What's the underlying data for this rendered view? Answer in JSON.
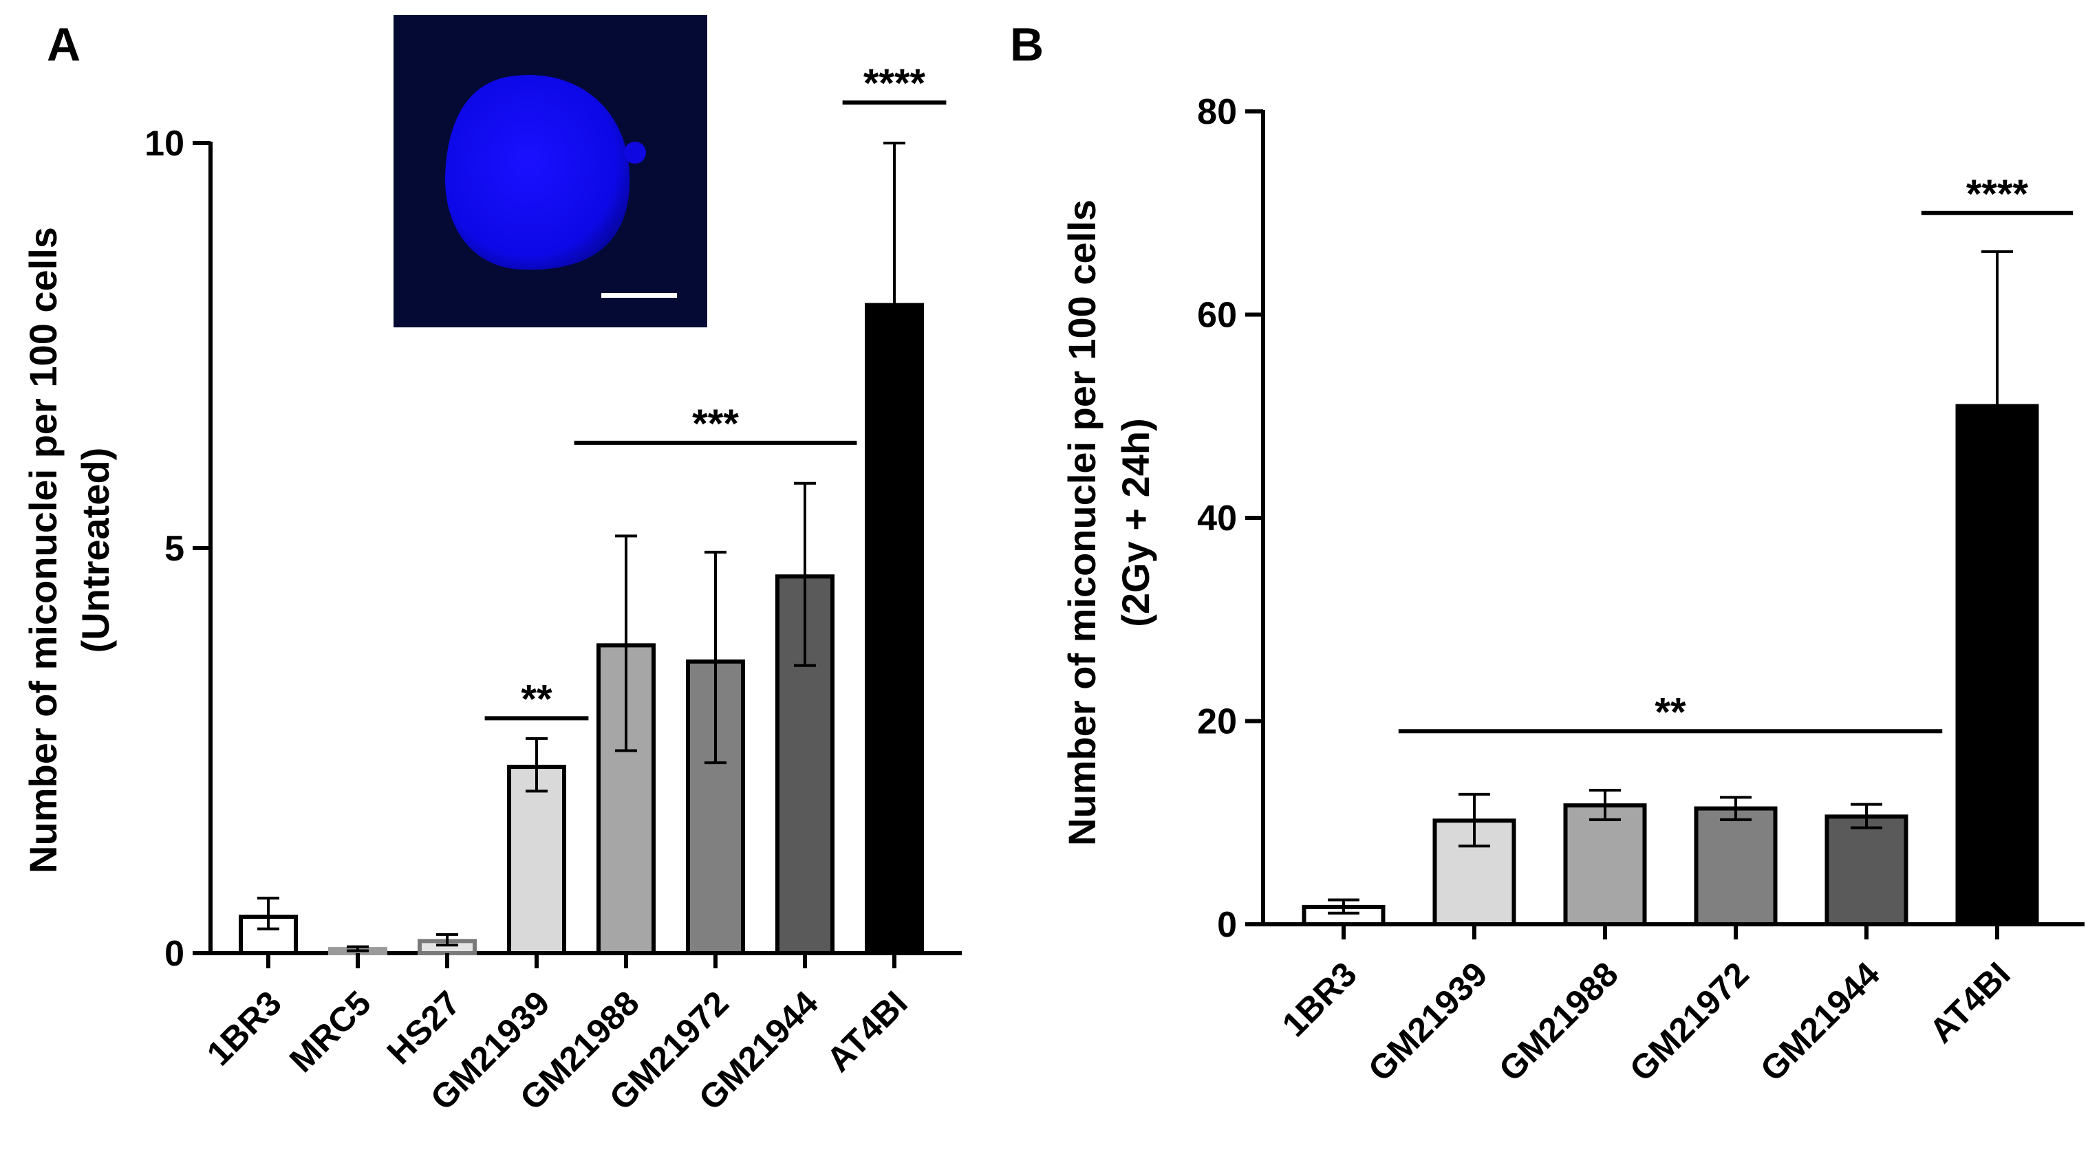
{
  "figure": {
    "panels": [
      "A",
      "B"
    ]
  },
  "chart_data": [
    {
      "panel": "A",
      "type": "bar",
      "title": "",
      "xlabel": "",
      "ylabel_lines": [
        "Number of miconuclei per 100 cells",
        "(Untreated)"
      ],
      "ylim": [
        0,
        10
      ],
      "yticks": [
        0,
        5,
        10
      ],
      "ytick_labels": [
        "0",
        "5",
        "10"
      ],
      "categories": [
        "1BR3",
        "MRC5",
        "HS27",
        "GM21939",
        "GM21988",
        "GM21972",
        "GM21944",
        "AT4BI"
      ],
      "values": [
        0.45,
        0.05,
        0.15,
        2.3,
        3.8,
        3.6,
        4.65,
        8.0
      ],
      "error_lower": [
        0.3,
        0.03,
        0.1,
        2.0,
        2.5,
        2.35,
        3.55,
        8.0
      ],
      "error_upper": [
        0.68,
        0.08,
        0.23,
        2.65,
        5.15,
        4.95,
        5.8,
        10.0
      ],
      "error_mode": [
        "both",
        "both",
        "both",
        "both",
        "both",
        "both",
        "both",
        "upper"
      ],
      "bar_colors": [
        "#ffffff",
        "#ececec",
        "#e4e4e4",
        "#d9d9d9",
        "#a6a6a6",
        "#808080",
        "#5a5a5a",
        "#000000"
      ],
      "bar_edge_colors": [
        "#000000",
        "#9a9a9a",
        "#7a7a7a",
        "#000000",
        "#000000",
        "#000000",
        "#000000",
        "#000000"
      ],
      "significance": [
        {
          "label": "**",
          "from": "GM21939",
          "to": "GM21939",
          "y": 2.9
        },
        {
          "label": "***",
          "from": "GM21988",
          "to": "GM21944",
          "y": 6.3
        },
        {
          "label": "****",
          "from": "AT4BI",
          "to": "AT4BI",
          "y": 10.5
        }
      ],
      "inset": {
        "description_color": "#0a0aff",
        "background": "#050a35"
      }
    },
    {
      "panel": "B",
      "type": "bar",
      "title": "",
      "xlabel": "",
      "ylabel_lines": [
        "Number of miconuclei per 100 cells",
        "(2Gy + 24h)"
      ],
      "ylim": [
        0,
        80
      ],
      "yticks": [
        0,
        20,
        40,
        60,
        80
      ],
      "ytick_labels": [
        "0",
        "20",
        "40",
        "60",
        "80"
      ],
      "categories": [
        "1BR3",
        "GM21939",
        "GM21988",
        "GM21972",
        "GM21944",
        "AT4BI"
      ],
      "values": [
        1.7,
        10.2,
        11.7,
        11.4,
        10.6,
        51.0
      ],
      "error_lower": [
        1.1,
        7.7,
        10.3,
        10.3,
        9.5,
        51.0
      ],
      "error_upper": [
        2.4,
        12.8,
        13.2,
        12.5,
        11.8,
        66.2
      ],
      "error_mode": [
        "both",
        "both",
        "both",
        "both",
        "both",
        "upper"
      ],
      "bar_colors": [
        "#ffffff",
        "#d9d9d9",
        "#a6a6a6",
        "#808080",
        "#5a5a5a",
        "#000000"
      ],
      "bar_edge_colors": [
        "#000000",
        "#000000",
        "#000000",
        "#000000",
        "#000000",
        "#000000"
      ],
      "significance": [
        {
          "label": "**",
          "from": "GM21939",
          "to": "GM21944",
          "y": 19
        },
        {
          "label": "****",
          "from": "AT4BI",
          "to": "AT4BI",
          "y": 70
        }
      ]
    }
  ]
}
